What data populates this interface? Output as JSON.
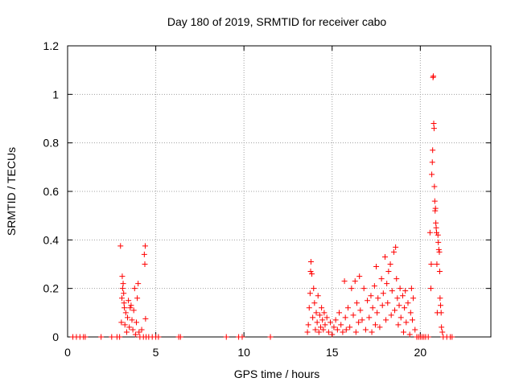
{
  "chart_data": {
    "type": "scatter",
    "title": "Day 180 of 2019, SRMTID for receiver cabo",
    "xlabel": "GPS time / hours",
    "ylabel": "SRMTID / TECUs",
    "xlim": [
      0,
      24
    ],
    "ylim": [
      0,
      1.2
    ],
    "x_ticks": [
      0,
      5,
      10,
      15,
      20
    ],
    "x_tick_labels": [
      "0",
      "5",
      "10",
      "15",
      "20"
    ],
    "y_ticks": [
      0,
      0.2,
      0.4,
      0.6,
      0.8,
      1.0,
      1.2
    ],
    "y_tick_labels": [
      "0",
      "0.2",
      "0.4",
      "0.6",
      "0.8",
      "1",
      "1.2"
    ],
    "grid": true,
    "marker": "+",
    "series": [
      {
        "name": "SRMTID",
        "color": "#ff0000",
        "points": [
          [
            0.3,
            0
          ],
          [
            0.5,
            0
          ],
          [
            0.7,
            0
          ],
          [
            0.9,
            0
          ],
          [
            1.0,
            0
          ],
          [
            1.9,
            0
          ],
          [
            2.5,
            0
          ],
          [
            2.8,
            0
          ],
          [
            2.95,
            0
          ],
          [
            3.0,
            0.375
          ],
          [
            3.05,
            0.06
          ],
          [
            3.08,
            0.16
          ],
          [
            3.1,
            0.25
          ],
          [
            3.12,
            0.2
          ],
          [
            3.15,
            0.22
          ],
          [
            3.18,
            0.18
          ],
          [
            3.2,
            0.14
          ],
          [
            3.22,
            0.12
          ],
          [
            3.25,
            0.05
          ],
          [
            3.3,
            0.1
          ],
          [
            3.35,
            0.02
          ],
          [
            3.4,
            0.08
          ],
          [
            3.45,
            0.15
          ],
          [
            3.5,
            0.04
          ],
          [
            3.55,
            0.12
          ],
          [
            3.6,
            0.13
          ],
          [
            3.65,
            0.07
          ],
          [
            3.7,
            0.03
          ],
          [
            3.75,
            0.11
          ],
          [
            3.8,
            0.2
          ],
          [
            3.85,
            0.01
          ],
          [
            3.9,
            0.06
          ],
          [
            3.95,
            0.16
          ],
          [
            4.0,
            0.22
          ],
          [
            4.05,
            0.02
          ],
          [
            4.1,
            0
          ],
          [
            4.2,
            0.03
          ],
          [
            4.3,
            0
          ],
          [
            4.35,
            0.34
          ],
          [
            4.38,
            0.3
          ],
          [
            4.4,
            0.375
          ],
          [
            4.42,
            0.075
          ],
          [
            4.45,
            0
          ],
          [
            4.6,
            0
          ],
          [
            4.8,
            0
          ],
          [
            5.0,
            0
          ],
          [
            5.15,
            0
          ],
          [
            6.3,
            0
          ],
          [
            6.4,
            0
          ],
          [
            9.0,
            0
          ],
          [
            9.7,
            0
          ],
          [
            9.9,
            0
          ],
          [
            11.5,
            0
          ],
          [
            13.6,
            0.02
          ],
          [
            13.65,
            0.05
          ],
          [
            13.7,
            0.12
          ],
          [
            13.75,
            0.18
          ],
          [
            13.78,
            0.27
          ],
          [
            13.8,
            0.31
          ],
          [
            13.85,
            0.26
          ],
          [
            13.9,
            0.08
          ],
          [
            13.95,
            0.2
          ],
          [
            14.0,
            0.14
          ],
          [
            14.05,
            0.03
          ],
          [
            14.1,
            0.1
          ],
          [
            14.15,
            0.06
          ],
          [
            14.2,
            0.17
          ],
          [
            14.25,
            0.02
          ],
          [
            14.3,
            0.09
          ],
          [
            14.35,
            0.04
          ],
          [
            14.4,
            0.12
          ],
          [
            14.45,
            0.07
          ],
          [
            14.5,
            0.03
          ],
          [
            14.55,
            0.1
          ],
          [
            14.6,
            0.05
          ],
          [
            14.7,
            0.08
          ],
          [
            14.8,
            0.02
          ],
          [
            14.9,
            0.06
          ],
          [
            15.0,
            0.01
          ],
          [
            15.1,
            0.04
          ],
          [
            15.2,
            0.07
          ],
          [
            15.3,
            0.03
          ],
          [
            15.4,
            0.1
          ],
          [
            15.5,
            0.05
          ],
          [
            15.6,
            0.02
          ],
          [
            15.7,
            0.23
          ],
          [
            15.75,
            0.08
          ],
          [
            15.8,
            0.03
          ],
          [
            15.9,
            0.12
          ],
          [
            16.0,
            0.04
          ],
          [
            16.1,
            0.2
          ],
          [
            16.2,
            0.09
          ],
          [
            16.3,
            0.23
          ],
          [
            16.35,
            0.02
          ],
          [
            16.4,
            0.14
          ],
          [
            16.5,
            0.06
          ],
          [
            16.55,
            0.25
          ],
          [
            16.6,
            0.11
          ],
          [
            16.7,
            0.07
          ],
          [
            16.8,
            0.2
          ],
          [
            16.9,
            0.03
          ],
          [
            17.0,
            0.15
          ],
          [
            17.1,
            0.08
          ],
          [
            17.2,
            0.17
          ],
          [
            17.25,
            0.02
          ],
          [
            17.3,
            0.12
          ],
          [
            17.4,
            0.21
          ],
          [
            17.45,
            0.05
          ],
          [
            17.5,
            0.29
          ],
          [
            17.55,
            0.1
          ],
          [
            17.6,
            0.16
          ],
          [
            17.7,
            0.04
          ],
          [
            17.8,
            0.24
          ],
          [
            17.85,
            0.13
          ],
          [
            17.9,
            0.18
          ],
          [
            18.0,
            0.33
          ],
          [
            18.05,
            0.07
          ],
          [
            18.1,
            0.22
          ],
          [
            18.15,
            0.14
          ],
          [
            18.2,
            0.27
          ],
          [
            18.3,
            0.3
          ],
          [
            18.35,
            0.09
          ],
          [
            18.4,
            0.19
          ],
          [
            18.5,
            0.35
          ],
          [
            18.55,
            0.11
          ],
          [
            18.6,
            0.37
          ],
          [
            18.65,
            0.24
          ],
          [
            18.7,
            0.16
          ],
          [
            18.75,
            0.05
          ],
          [
            18.8,
            0.13
          ],
          [
            18.85,
            0.2
          ],
          [
            18.9,
            0.08
          ],
          [
            19.0,
            0.17
          ],
          [
            19.05,
            0.02
          ],
          [
            19.1,
            0.12
          ],
          [
            19.15,
            0.19
          ],
          [
            19.2,
            0.06
          ],
          [
            19.3,
            0.14
          ],
          [
            19.4,
            0.01
          ],
          [
            19.45,
            0.1
          ],
          [
            19.5,
            0.2
          ],
          [
            19.55,
            0.07
          ],
          [
            19.6,
            0.16
          ],
          [
            19.7,
            0.03
          ],
          [
            19.8,
            0
          ],
          [
            19.9,
            0
          ],
          [
            20.0,
            0
          ],
          [
            20.1,
            0
          ],
          [
            20.2,
            0
          ],
          [
            20.3,
            0
          ],
          [
            20.45,
            0
          ],
          [
            20.55,
            0.43
          ],
          [
            20.6,
            0.2
          ],
          [
            20.62,
            0.3
          ],
          [
            20.65,
            0.67
          ],
          [
            20.68,
            0.72
          ],
          [
            20.7,
            0.77
          ],
          [
            20.72,
            1.07
          ],
          [
            20.74,
            1.075
          ],
          [
            20.76,
            0.88
          ],
          [
            20.78,
            0.86
          ],
          [
            20.8,
            0.62
          ],
          [
            20.82,
            0.56
          ],
          [
            20.84,
            0.52
          ],
          [
            20.86,
            0.53
          ],
          [
            20.88,
            0.47
          ],
          [
            20.9,
            0.45
          ],
          [
            20.92,
            0.43
          ],
          [
            20.94,
            0.3
          ],
          [
            20.96,
            0.1
          ],
          [
            21.0,
            0.42
          ],
          [
            21.02,
            0.39
          ],
          [
            21.05,
            0.36
          ],
          [
            21.08,
            0.35
          ],
          [
            21.1,
            0.27
          ],
          [
            21.12,
            0.16
          ],
          [
            21.15,
            0.13
          ],
          [
            21.18,
            0.1
          ],
          [
            21.2,
            0.04
          ],
          [
            21.25,
            0.02
          ],
          [
            21.3,
            0
          ],
          [
            21.5,
            0
          ],
          [
            21.7,
            0
          ],
          [
            21.8,
            0
          ]
        ]
      }
    ]
  }
}
